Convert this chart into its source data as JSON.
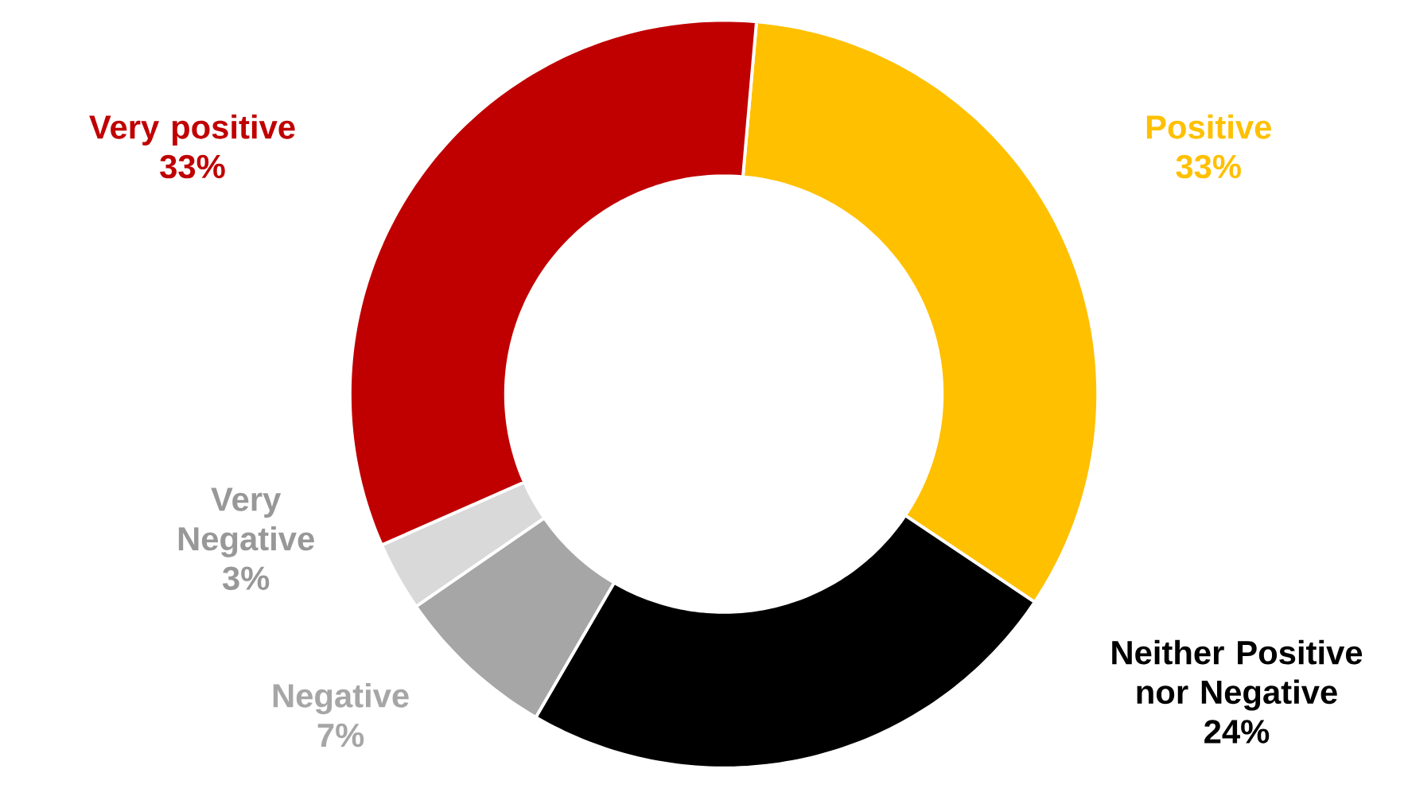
{
  "chart_data": {
    "type": "donut",
    "categories": [
      "Positive",
      "Neither Positive nor Negative",
      "Negative",
      "Very Negative",
      "Very positive"
    ],
    "values": [
      33,
      24,
      7,
      3,
      33
    ],
    "value_labels": [
      "33%",
      "24%",
      "7%",
      "3%",
      "33%"
    ],
    "colors": [
      "#ffc000",
      "#000000",
      "#a6a6a6",
      "#d9d9d9",
      "#c00000"
    ]
  }
}
